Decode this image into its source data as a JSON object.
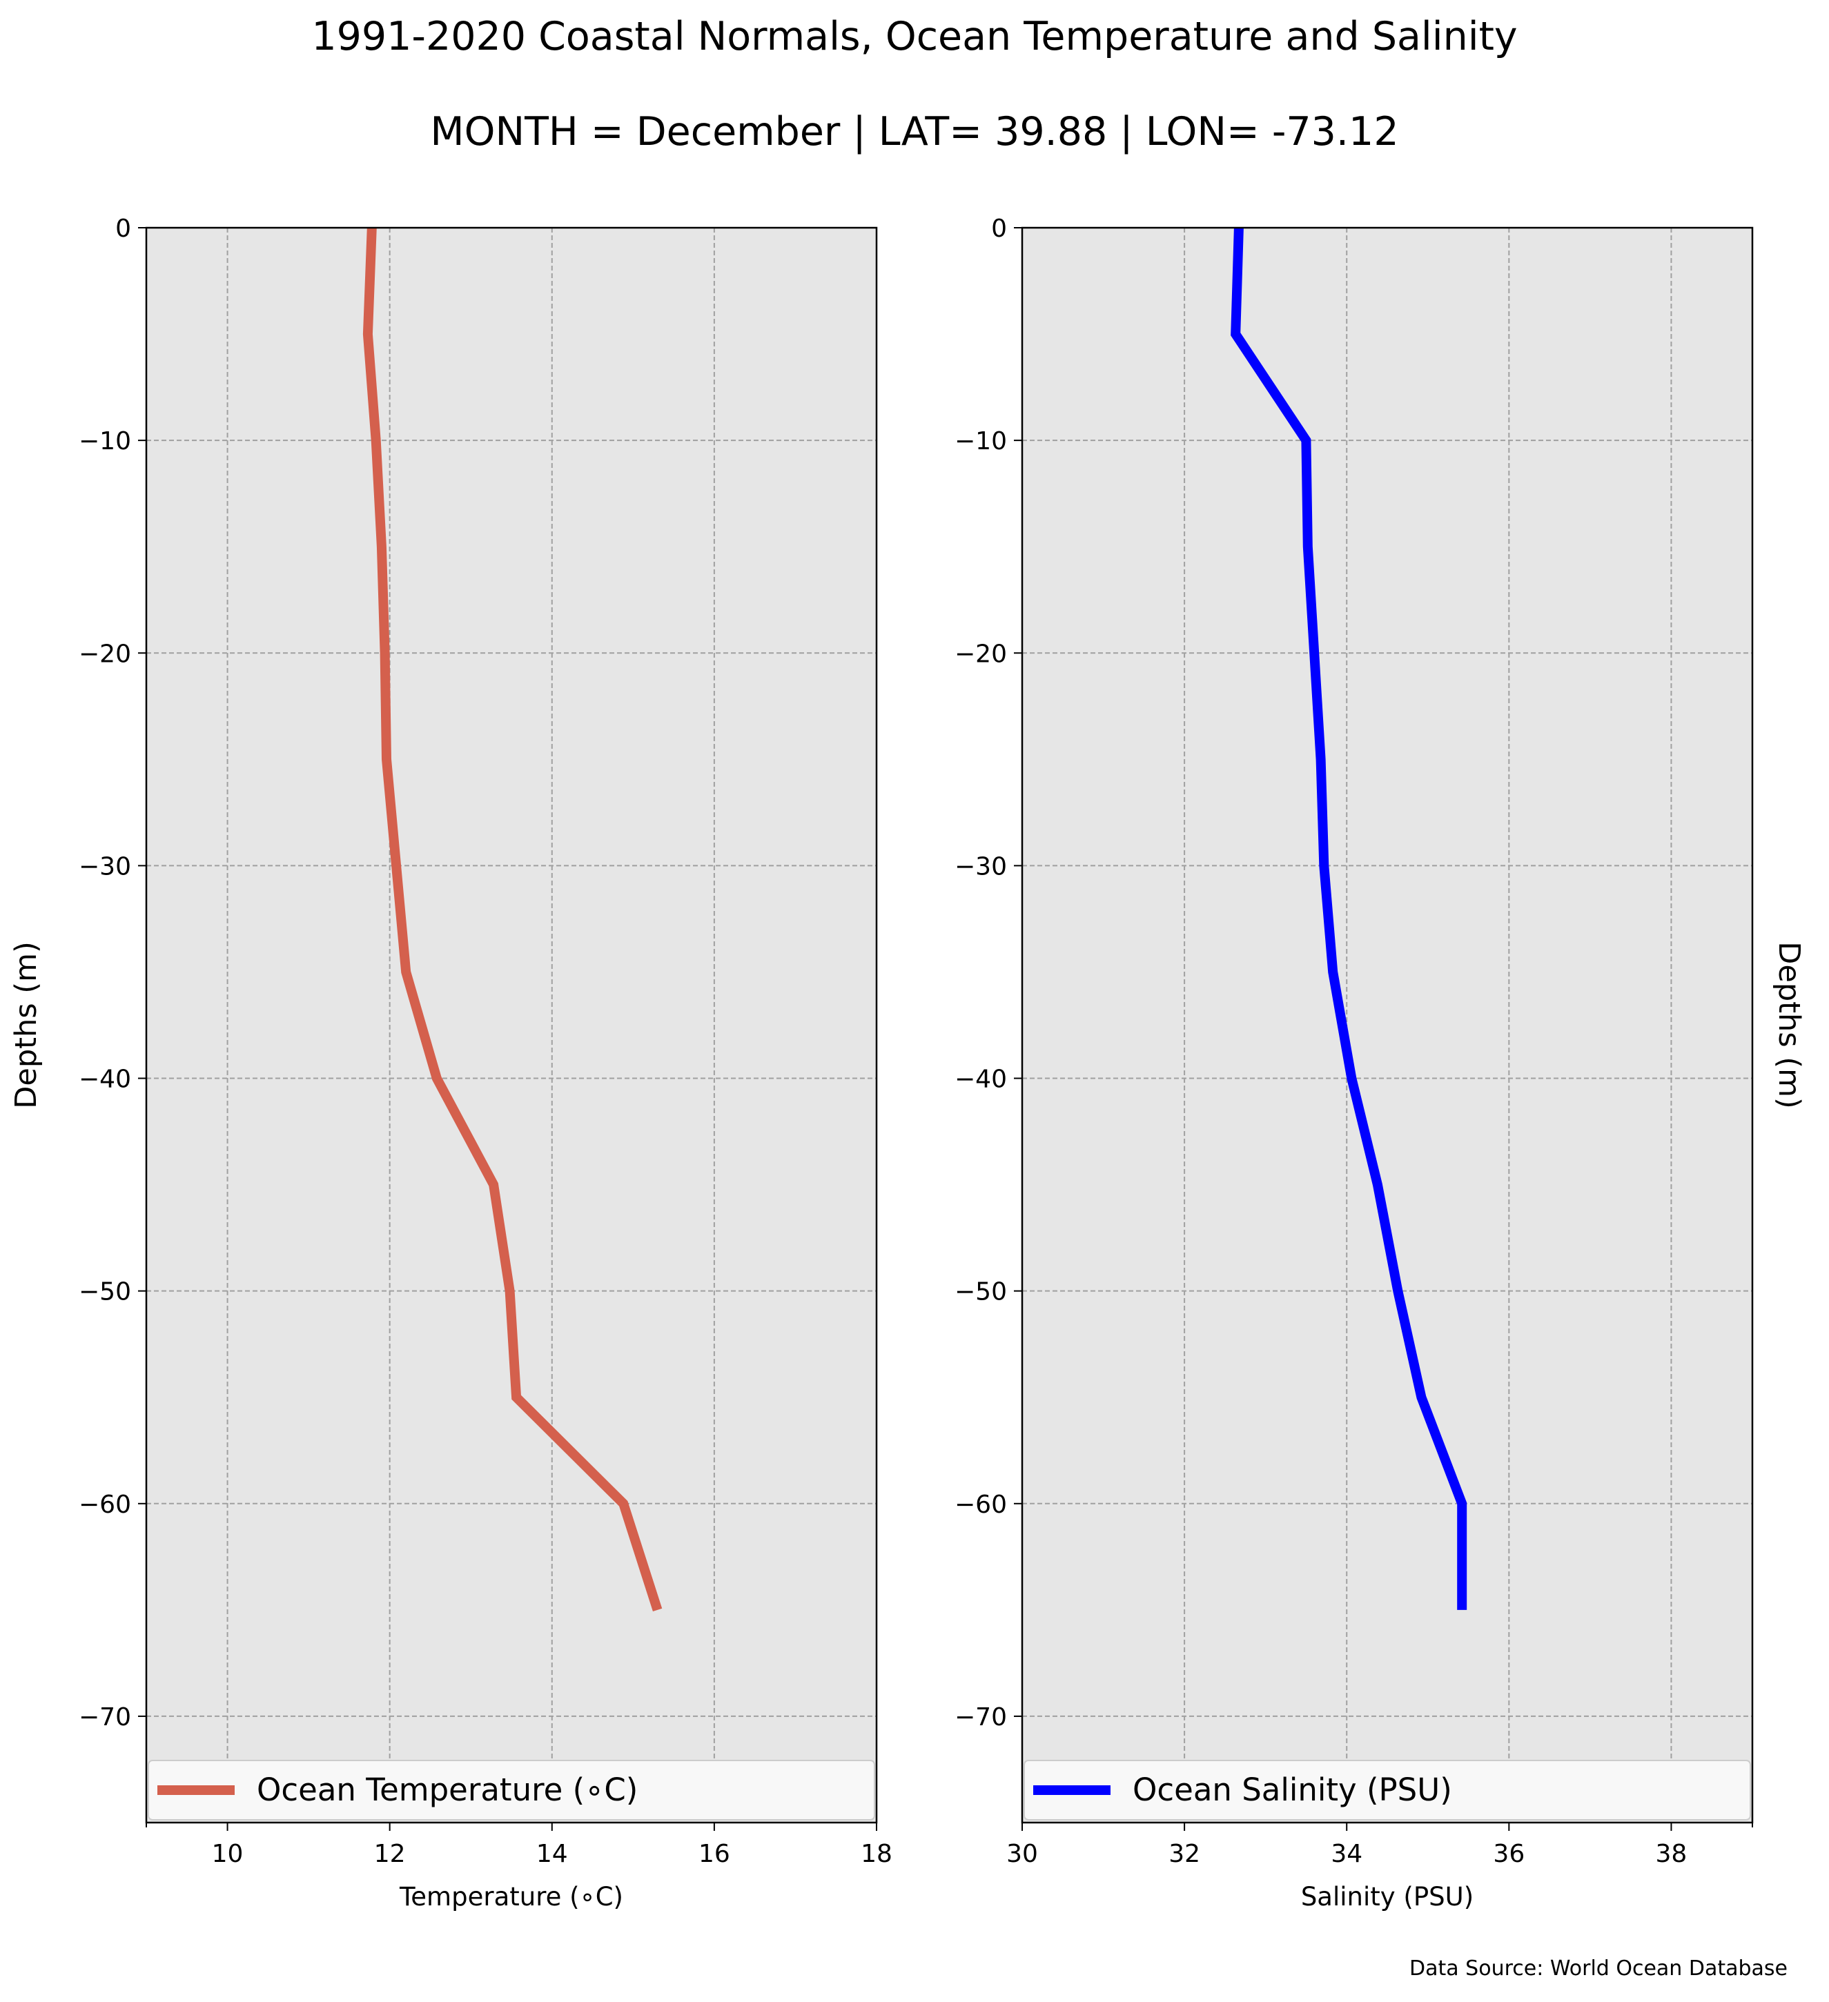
{
  "title_line1": "1991-2020 Coastal Normals, Ocean Temperature and Salinity",
  "title_line2": "MONTH = December | LAT= 39.88 | LON= -73.12",
  "source_note": "Data Source: World Ocean Database",
  "chart_data": [
    {
      "type": "line",
      "xlabel": "Temperature (∘C)",
      "ylabel": "Depths (m)",
      "ylabel_side": "left",
      "xlim": [
        9,
        18
      ],
      "ylim": [
        -75,
        0
      ],
      "xticks": [
        10,
        12,
        14,
        16,
        18
      ],
      "yticks": [
        0,
        -10,
        -20,
        -30,
        -40,
        -50,
        -60,
        -70
      ],
      "grid": true,
      "background": "#e6e6e6",
      "legend": "bottom",
      "series": [
        {
          "name": "Ocean Temperature (∘C)",
          "color": "#d4604d",
          "x": [
            11.78,
            11.73,
            11.83,
            11.9,
            11.94,
            11.96,
            12.2,
            12.58,
            13.28,
            13.48,
            13.56,
            14.88,
            15.3
          ],
          "y": [
            0,
            -5,
            -10,
            -15,
            -20,
            -25,
            -35,
            -40,
            -45,
            -50,
            -55,
            -60,
            -65
          ]
        }
      ]
    },
    {
      "type": "line",
      "xlabel": "Salinity (PSU)",
      "ylabel": "Depths (m)",
      "ylabel_side": "right",
      "xlim": [
        30,
        39
      ],
      "ylim": [
        -75,
        0
      ],
      "xticks": [
        30,
        32,
        34,
        36,
        38
      ],
      "yticks": [
        0,
        -10,
        -20,
        -30,
        -40,
        -50,
        -60,
        -70
      ],
      "grid": true,
      "background": "#e6e6e6",
      "legend": "bottom",
      "series": [
        {
          "name": "Ocean Salinity (PSU)",
          "color": "#0000ff",
          "x": [
            32.67,
            32.63,
            33.5,
            33.52,
            33.6,
            33.68,
            33.72,
            33.83,
            34.06,
            34.38,
            34.63,
            34.92,
            35.42,
            35.42
          ],
          "y": [
            0,
            -5,
            -10,
            -15,
            -20,
            -25,
            -30,
            -35,
            -40,
            -45,
            -50,
            -55,
            -60,
            -65
          ]
        }
      ]
    }
  ]
}
